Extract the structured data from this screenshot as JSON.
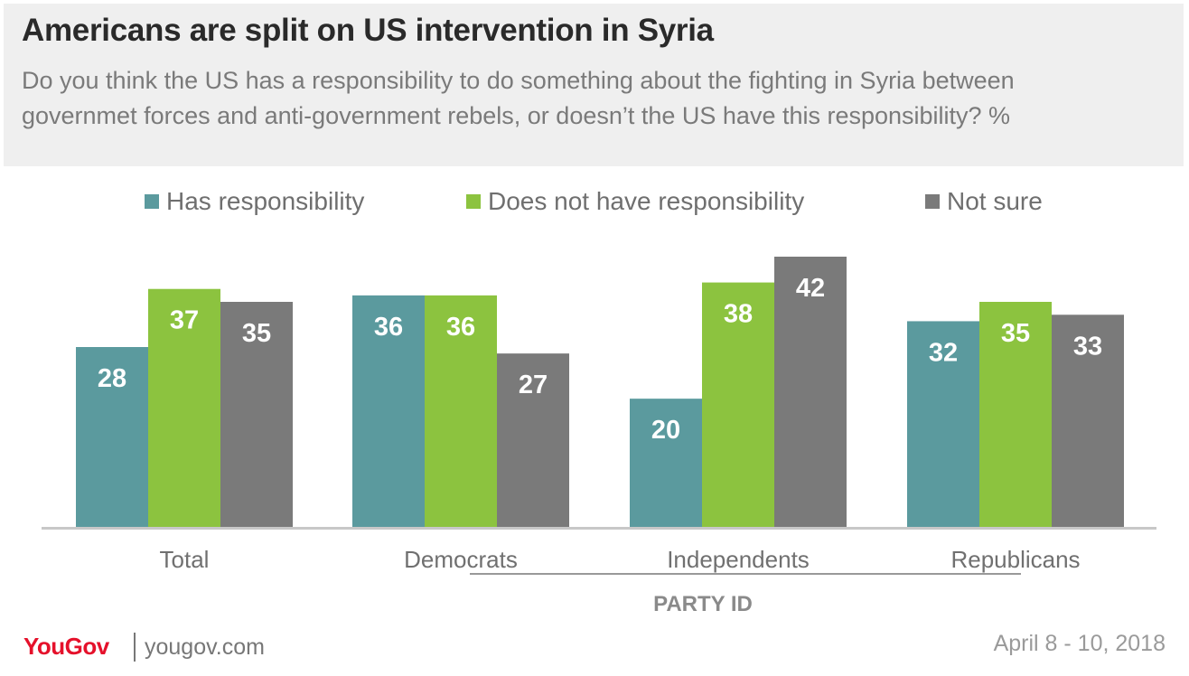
{
  "title": "Americans are split on US intervention in Syria",
  "subtitle": "Do you think the US has a responsibility to do something about the fighting in Syria between governmet forces and anti-government rebels, or doesn’t the US have this responsibility? %",
  "footer": {
    "logo": "YouGov",
    "site": "yougov.com",
    "date": "April 8 - 10, 2018"
  },
  "colors": {
    "has_responsibility": "#5b9a9e",
    "does_not_have": "#8cc33f",
    "not_sure": "#7a7a7a"
  },
  "chart_data": {
    "type": "bar",
    "categories": [
      "Total",
      "Democrats",
      "Independents",
      "Republicans"
    ],
    "group_label": "PARTY ID",
    "ylim": [
      0,
      42
    ],
    "grid": false,
    "legend_position": "top",
    "series": [
      {
        "name": "Has responsibility",
        "values": [
          28,
          36,
          20,
          32
        ],
        "color": "#5b9a9e"
      },
      {
        "name": "Does not have responsibility",
        "values": [
          37,
          36,
          38,
          35
        ],
        "color": "#8cc33f"
      },
      {
        "name": "Not sure",
        "values": [
          35,
          27,
          42,
          33
        ],
        "color": "#7a7a7a"
      }
    ]
  }
}
